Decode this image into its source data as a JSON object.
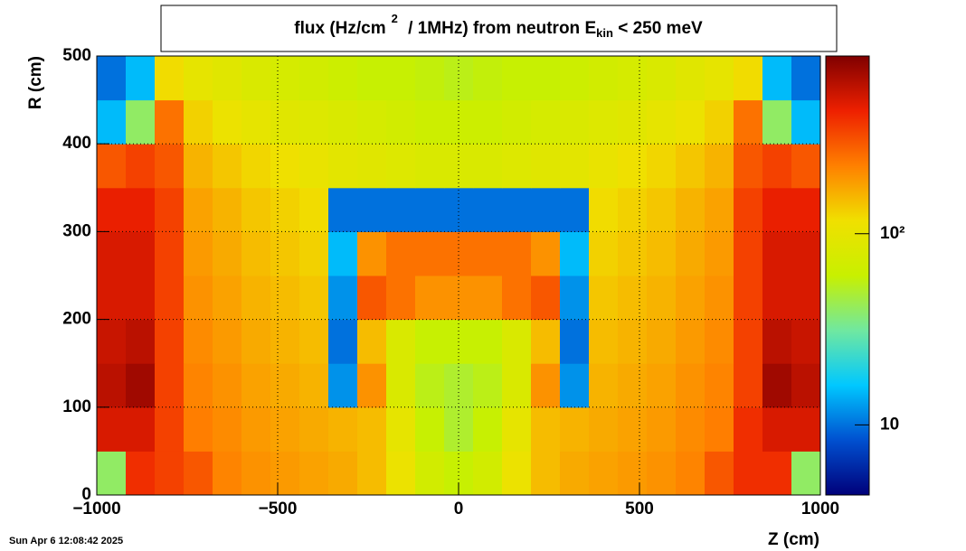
{
  "chart_data": {
    "type": "heatmap",
    "title": [
      "flux (Hz/cm",
      "2",
      " / 1MHz) from   neutron  E",
      "kin",
      " < 250 meV"
    ],
    "xlabel": "Z (cm)",
    "ylabel": "R (cm)",
    "footer": "Sun Apr  6 12:08:42 2025",
    "xlim": [
      -1000,
      1000
    ],
    "ylim": [
      0,
      500
    ],
    "xticks": [
      {
        "value": -1000,
        "label": "−1000"
      },
      {
        "value": -500,
        "label": "−500"
      },
      0,
      500,
      1000
    ],
    "yticks": [
      0,
      100,
      200,
      300,
      400,
      500
    ],
    "grid": true,
    "zlim": [
      4.3,
      850
    ],
    "zlog": true,
    "zticks": [
      10,
      {
        "value": 100,
        "label": "10²"
      }
    ],
    "palette": [
      "#00007a",
      "#0050d0",
      "#00c8ff",
      "#70e8a0",
      "#c8f000",
      "#f0e000",
      "#ff8000",
      "#ee2000",
      "#800000"
    ],
    "xbins": [
      -1000,
      -920,
      -840,
      -760,
      -680,
      -600,
      -520,
      -440,
      -360,
      -280,
      -200,
      -120,
      -40,
      40,
      120,
      200,
      280,
      360,
      440,
      520,
      600,
      680,
      760,
      840,
      920,
      1000
    ],
    "ybins": [
      0,
      50,
      100,
      150,
      200,
      250,
      300,
      350,
      400,
      450,
      500
    ],
    "z": [
      [
        40,
        400,
        350,
        300,
        220,
        200,
        190,
        180,
        170,
        150,
        110,
        70,
        60,
        70,
        110,
        150,
        170,
        180,
        190,
        200,
        220,
        300,
        400,
        400,
        40
      ],
      [
        500,
        500,
        350,
        230,
        210,
        190,
        180,
        170,
        160,
        150,
        100,
        60,
        50,
        60,
        100,
        150,
        160,
        170,
        180,
        190,
        210,
        230,
        400,
        500,
        500
      ],
      [
        600,
        700,
        350,
        220,
        200,
        180,
        170,
        160,
        12,
        200,
        80,
        55,
        50,
        55,
        80,
        200,
        12,
        160,
        170,
        180,
        200,
        220,
        350,
        700,
        600
      ],
      [
        550,
        600,
        350,
        210,
        190,
        170,
        160,
        150,
        10,
        150,
        80,
        60,
        60,
        60,
        80,
        150,
        10,
        150,
        160,
        170,
        190,
        210,
        350,
        600,
        550
      ],
      [
        500,
        500,
        350,
        200,
        180,
        160,
        150,
        140,
        12,
        300,
        250,
        200,
        200,
        200,
        250,
        300,
        12,
        140,
        150,
        160,
        180,
        200,
        350,
        500,
        500
      ],
      [
        500,
        500,
        350,
        190,
        170,
        150,
        140,
        130,
        15,
        200,
        250,
        250,
        250,
        250,
        250,
        200,
        15,
        130,
        140,
        150,
        170,
        190,
        350,
        500,
        500
      ],
      [
        450,
        450,
        350,
        180,
        160,
        140,
        130,
        120,
        10,
        10,
        10,
        10,
        10,
        10,
        10,
        10,
        10,
        120,
        130,
        140,
        160,
        180,
        350,
        450,
        450
      ],
      [
        300,
        350,
        300,
        160,
        140,
        125,
        115,
        105,
        95,
        90,
        85,
        80,
        80,
        80,
        85,
        90,
        95,
        105,
        115,
        125,
        140,
        160,
        300,
        350,
        300
      ],
      [
        15,
        40,
        250,
        130,
        110,
        100,
        90,
        85,
        80,
        75,
        70,
        65,
        65,
        65,
        70,
        75,
        80,
        85,
        90,
        100,
        110,
        130,
        250,
        40,
        15
      ],
      [
        10,
        15,
        120,
        100,
        90,
        80,
        75,
        70,
        65,
        60,
        60,
        58,
        55,
        58,
        60,
        60,
        65,
        70,
        75,
        80,
        90,
        100,
        120,
        15,
        10
      ]
    ]
  }
}
